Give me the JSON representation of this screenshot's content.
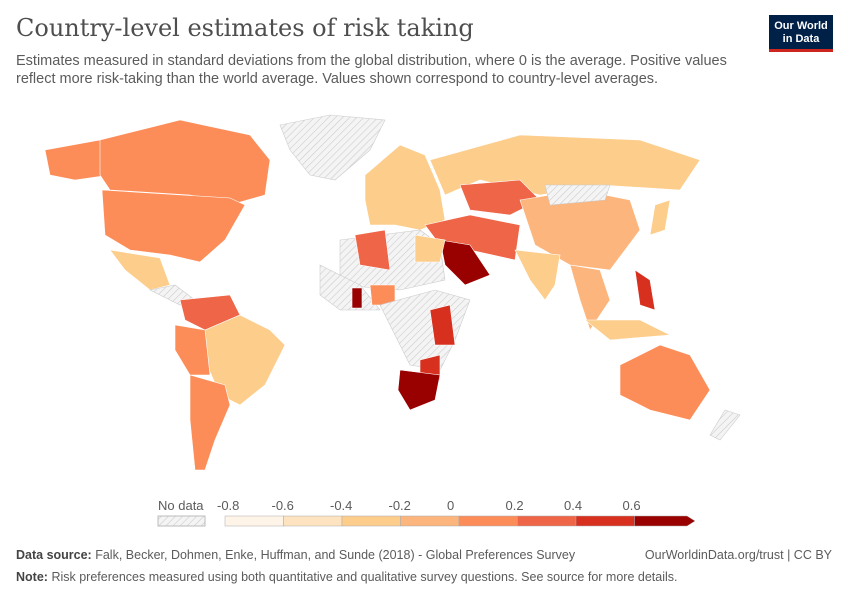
{
  "header": {
    "title": "Country-level estimates of risk taking",
    "subtitle": "Estimates measured in standard deviations from the global distribution, where 0 is the average. Positive values reflect more risk-taking than the world average. Values shown correspond to country-level averages.",
    "logo": "Our World in Data"
  },
  "legend": {
    "no_data_label": "No data",
    "ticks": [
      "-0.8",
      "-0.6",
      "-0.4",
      "-0.2",
      "0",
      "0.2",
      "0.4",
      "0.6"
    ],
    "bins": [
      "#fff4e8",
      "#fee3c0",
      "#fdcd8c",
      "#fcb57c",
      "#fc8d59",
      "#ee6548",
      "#d7301f",
      "#990000"
    ],
    "no_data_color": "#e8e8e8"
  },
  "footer": {
    "source_label": "Data source:",
    "source": "Falk, Becker, Dohmen, Enke, Huffman, and Sunde (2018) - Global Preferences Survey",
    "note_label": "Note:",
    "note": "Risk preferences measured using both quantitative and qualitative survey questions. See source for more details.",
    "license": "OurWorldinData.org/trust | CC BY"
  }
}
